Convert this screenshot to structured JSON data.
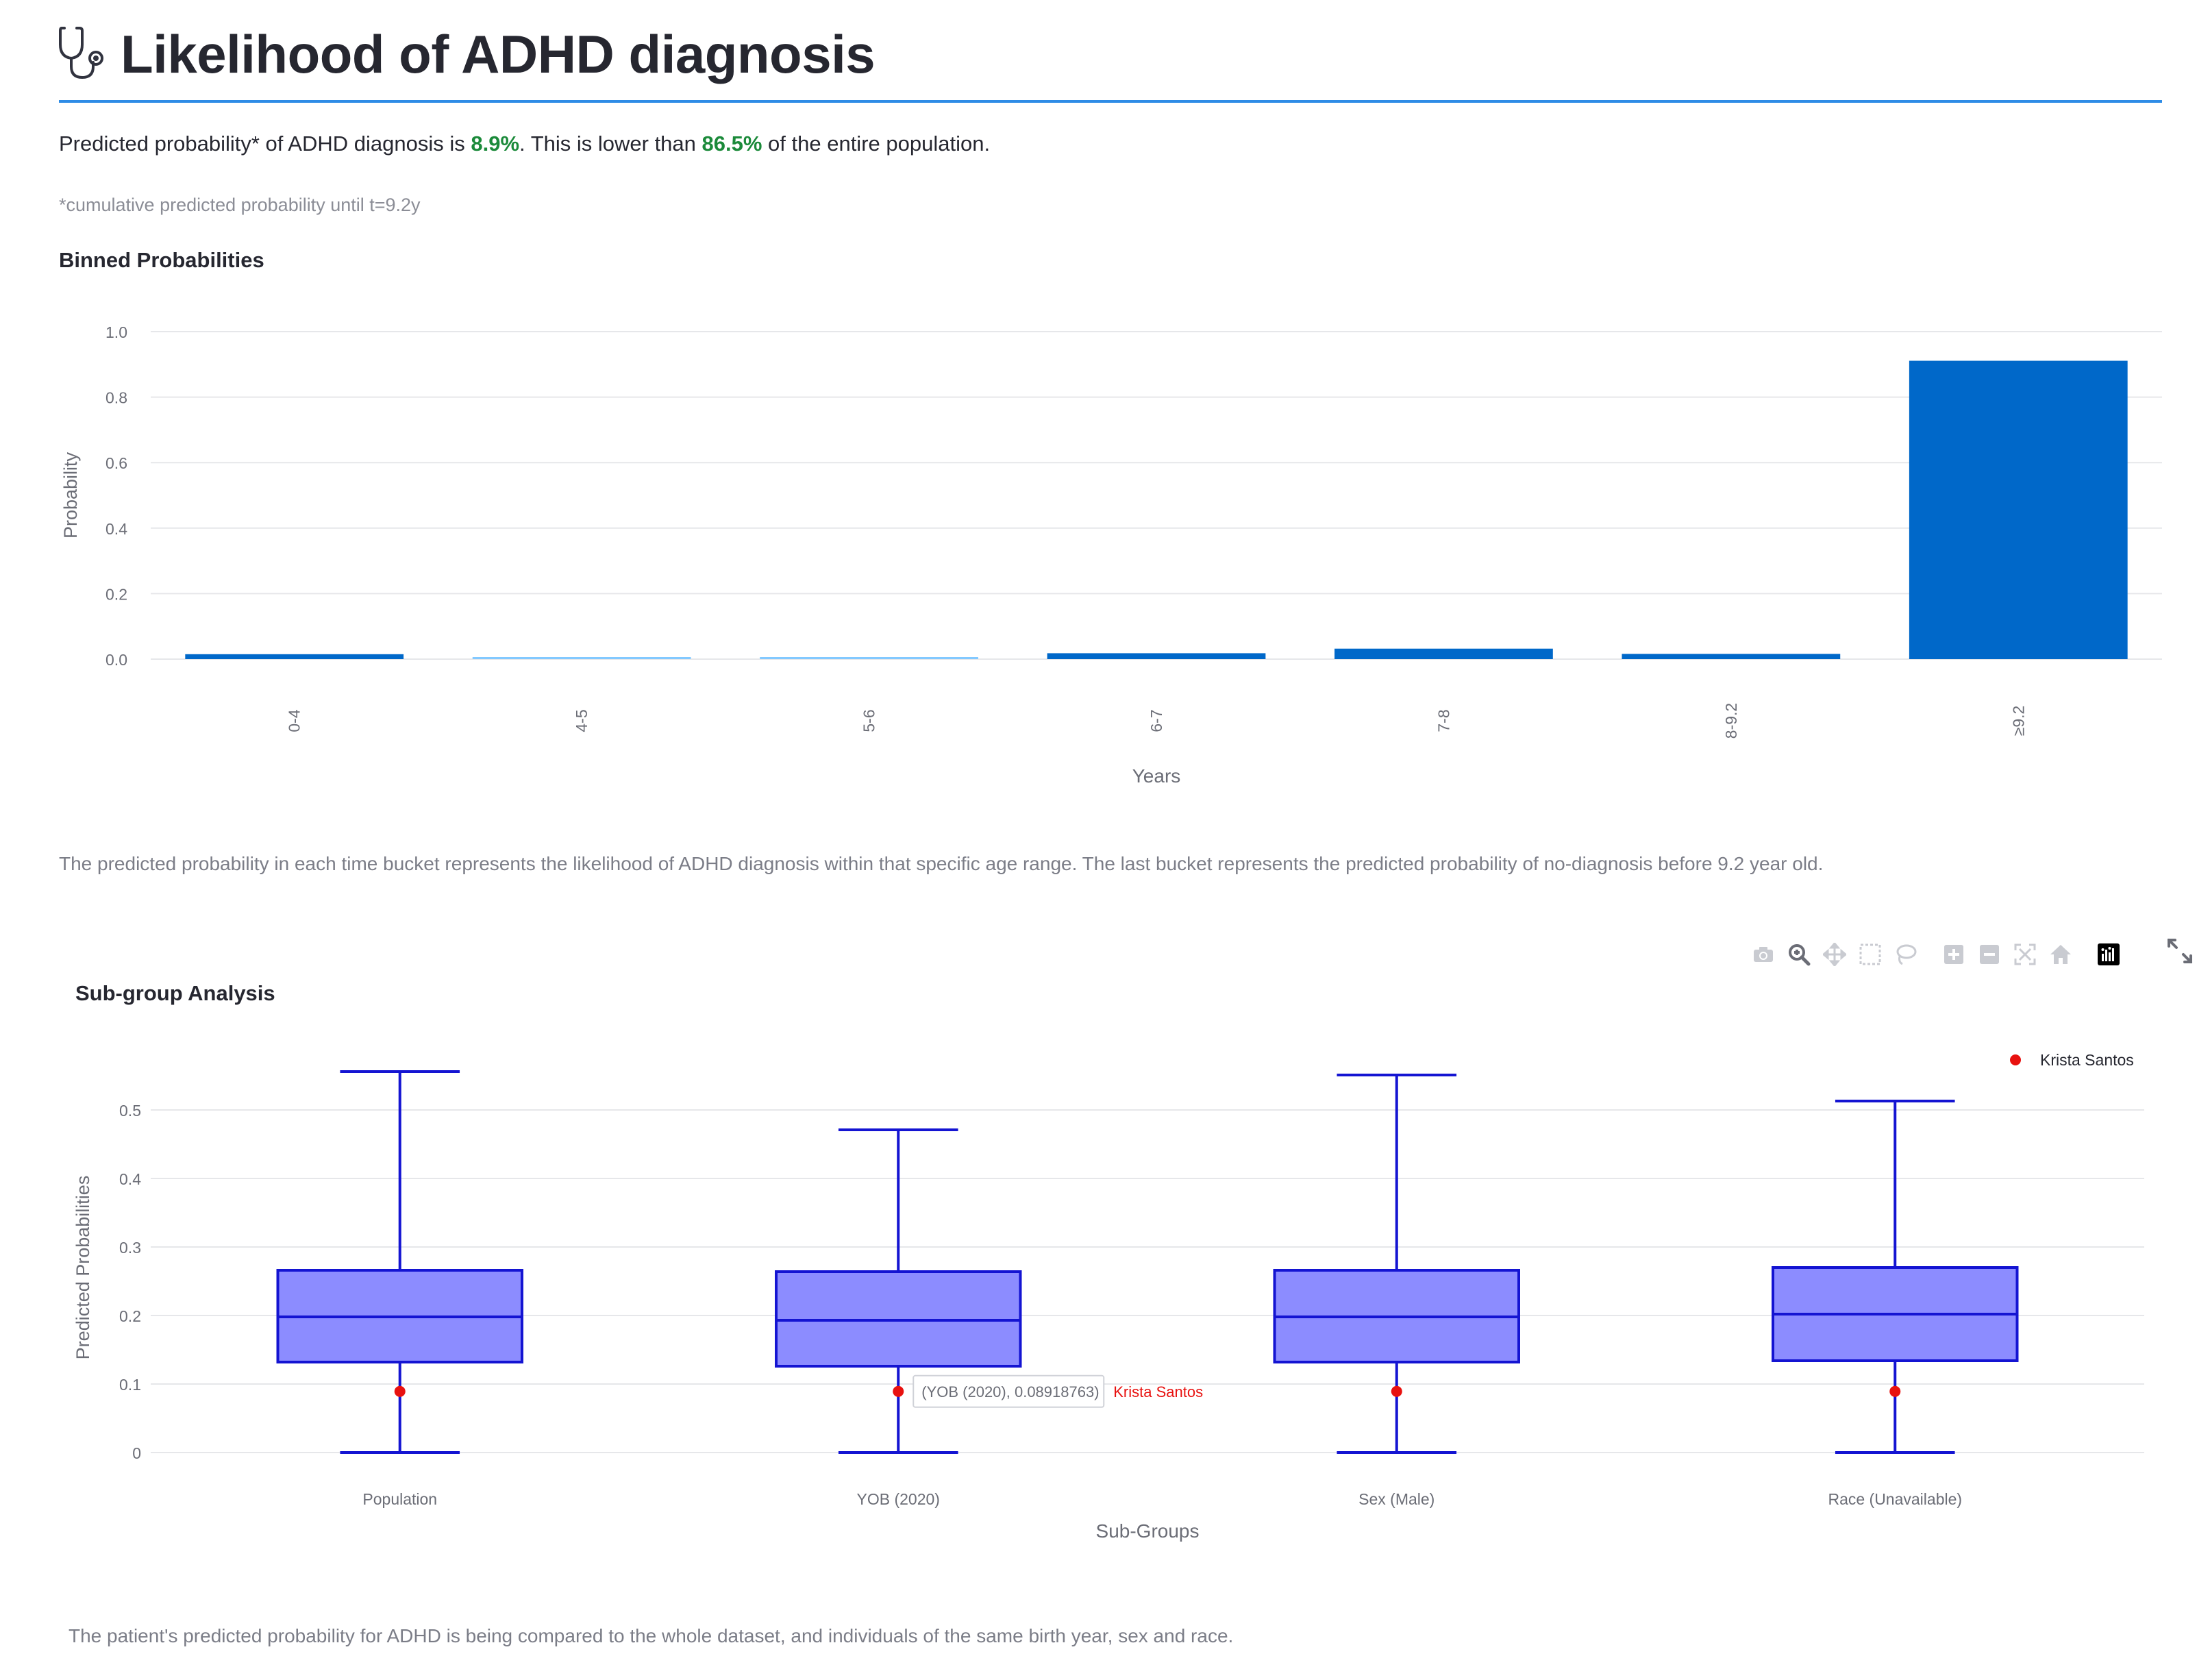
{
  "header": {
    "icon": "stethoscope-icon",
    "title": "Likelihood of ADHD diagnosis",
    "rule_color": "#2e8ce6"
  },
  "summary": {
    "prefix": "Predicted probability* of ADHD diagnosis is ",
    "probability": "8.9%",
    "middle": ". This is lower than ",
    "percentile": "86.5%",
    "suffix": " of the entire population.",
    "highlight_color": "#1b8a3a"
  },
  "footnote": "*cumulative predicted probability until t=9.2y",
  "binned": {
    "section_title": "Binned Probabilities",
    "caption": "The predicted probability in each time bucket represents the likelihood of ADHD diagnosis within that specific age range. The last bucket represents the predicted probability of no-diagnosis before 9.2 year old."
  },
  "subgroup": {
    "section_title": "Sub-group Analysis",
    "caption": "The patient's predicted probability for ADHD is being compared to the whole dataset, and individuals of the same birth year, sex and race."
  },
  "modebar": {
    "icons": [
      "camera-icon",
      "zoom-icon",
      "pan-icon",
      "box-select-icon",
      "lasso-icon",
      "zoom-in-icon",
      "zoom-out-icon",
      "autoscale-icon",
      "reset-axes-icon",
      "plotly-logo-icon"
    ],
    "fullscreen_icon": "fullscreen-icon"
  },
  "chart_data": [
    {
      "type": "bar",
      "title": "",
      "xlabel": "Years",
      "ylabel": "Probability",
      "ylim": [
        0,
        1.0
      ],
      "yticks": [
        "0.0",
        "0.2",
        "0.4",
        "0.6",
        "0.8",
        "1.0"
      ],
      "categories": [
        "0-4",
        "4-5",
        "5-6",
        "6-7",
        "7-8",
        "8-9.2",
        "≥9.2"
      ],
      "values": [
        0.015,
        0.003,
        0.003,
        0.018,
        0.032,
        0.016,
        0.911
      ],
      "bar_colors": [
        "#0068c9",
        "#83c9ff",
        "#83c9ff",
        "#0068c9",
        "#0068c9",
        "#0068c9",
        "#0068c9"
      ],
      "grid": true
    },
    {
      "type": "box",
      "xlabel": "Sub-Groups",
      "ylabel": "Predicted Probabilities",
      "ylim": [
        0,
        0.58
      ],
      "yticks": [
        "0",
        "0.1",
        "0.2",
        "0.3",
        "0.4",
        "0.5"
      ],
      "categories": [
        "Population",
        "YOB (2020)",
        "Sex (Male)",
        "Race (Unavailable)"
      ],
      "boxes": [
        {
          "min": 0.0,
          "q1": 0.132,
          "median": 0.198,
          "q3": 0.266,
          "max": 0.556
        },
        {
          "min": 0.0,
          "q1": 0.126,
          "median": 0.193,
          "q3": 0.264,
          "max": 0.471
        },
        {
          "min": 0.0,
          "q1": 0.132,
          "median": 0.198,
          "q3": 0.266,
          "max": 0.551
        },
        {
          "min": 0.0,
          "q1": 0.134,
          "median": 0.202,
          "q3": 0.27,
          "max": 0.513
        }
      ],
      "box_fill": "#8c8cff",
      "box_line": "#1414d2",
      "patient": {
        "name": "Krista Santos",
        "value": 0.08918763,
        "color": "#e8110f"
      },
      "hover": {
        "category_index": 1,
        "text": "(YOB (2020), 0.08918763)",
        "name": "Krista Santos"
      },
      "legend_position": "top-right",
      "grid": true
    }
  ]
}
